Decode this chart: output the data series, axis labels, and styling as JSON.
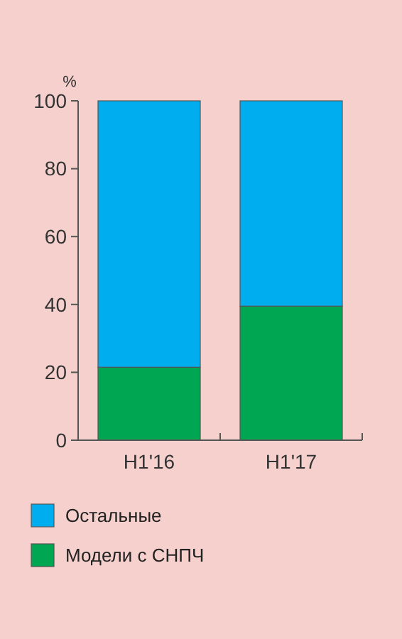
{
  "chart_data": {
    "type": "bar",
    "stacked": true,
    "ylabel": "%",
    "categories": [
      "H1'16",
      "H1'17"
    ],
    "series": [
      {
        "name": "Модели с СНПЧ",
        "color": "#00a651",
        "values": [
          21.5,
          39.5
        ]
      },
      {
        "name": "Остальные",
        "color": "#00aeef",
        "values": [
          78.5,
          60.5
        ]
      }
    ],
    "ylim": [
      0,
      100
    ],
    "yticks": [
      0,
      20,
      40,
      60,
      80,
      100
    ],
    "grid": false,
    "legend": "bottom"
  }
}
